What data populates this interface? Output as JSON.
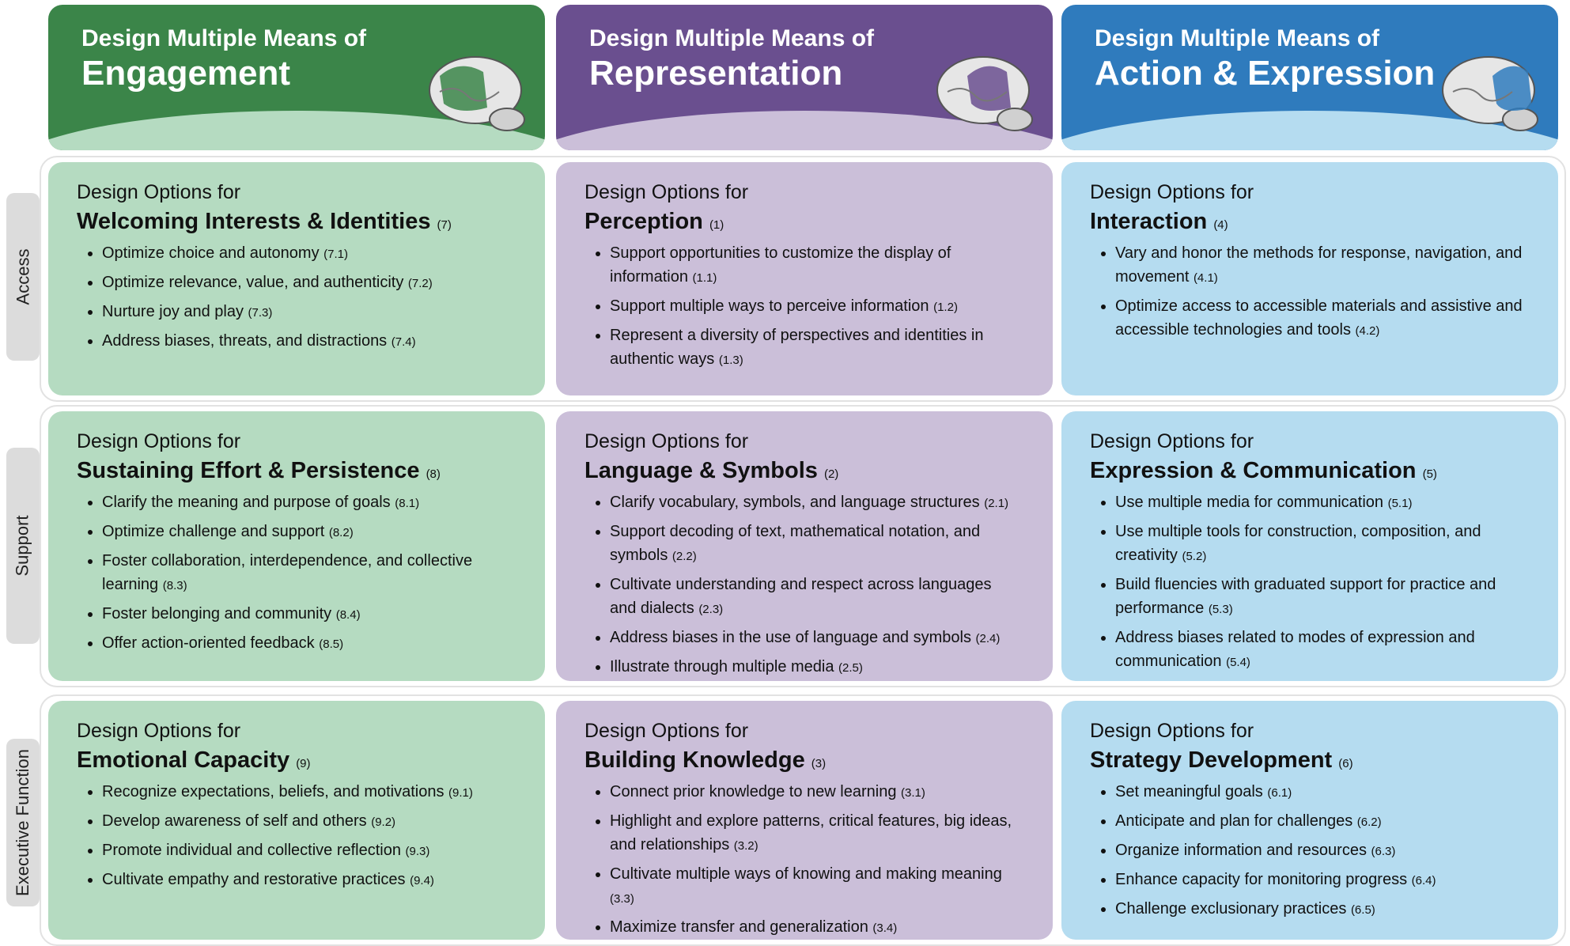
{
  "columns": [
    {
      "pre": "Design Multiple Means of",
      "title": "Engagement"
    },
    {
      "pre": "Design Multiple Means of",
      "title": "Representation"
    },
    {
      "pre": "Design Multiple Means of",
      "title": "Action & Expression"
    }
  ],
  "rows": [
    {
      "label": "Access",
      "cells": [
        {
          "pre": "Design Options for",
          "title": "Welcoming Interests & Identities",
          "num": "(7)",
          "items": [
            {
              "text": "Optimize choice and autonomy",
              "ref": "(7.1)"
            },
            {
              "text": "Optimize relevance, value, and authenticity",
              "ref": "(7.2)"
            },
            {
              "text": "Nurture joy and play",
              "ref": "(7.3)"
            },
            {
              "text": "Address biases, threats, and distractions",
              "ref": "(7.4)"
            }
          ]
        },
        {
          "pre": "Design Options for",
          "title": "Perception",
          "num": "(1)",
          "items": [
            {
              "text": "Support opportunities to customize the display of information",
              "ref": "(1.1)"
            },
            {
              "text": "Support multiple ways to perceive information",
              "ref": "(1.2)"
            },
            {
              "text": "Represent a diversity of perspectives and identities in authentic ways",
              "ref": "(1.3)"
            }
          ]
        },
        {
          "pre": "Design Options for",
          "title": "Interaction",
          "num": "(4)",
          "items": [
            {
              "text": "Vary and honor the methods for response, navigation, and movement",
              "ref": "(4.1)"
            },
            {
              "text": "Optimize access to accessible materials and assistive and accessible technologies and tools",
              "ref": "(4.2)"
            }
          ]
        }
      ]
    },
    {
      "label": "Support",
      "cells": [
        {
          "pre": "Design Options for",
          "title": "Sustaining Effort & Persistence",
          "num": "(8)",
          "items": [
            {
              "text": "Clarify the meaning and purpose of goals",
              "ref": "(8.1)"
            },
            {
              "text": "Optimize challenge and support",
              "ref": "(8.2)"
            },
            {
              "text": "Foster collaboration, interdependence, and collective learning",
              "ref": "(8.3)"
            },
            {
              "text": "Foster belonging and community",
              "ref": "(8.4)"
            },
            {
              "text": "Offer action-oriented feedback",
              "ref": "(8.5)"
            }
          ]
        },
        {
          "pre": "Design Options for",
          "title": "Language & Symbols",
          "num": "(2)",
          "items": [
            {
              "text": "Clarify vocabulary, symbols, and language structures",
              "ref": "(2.1)"
            },
            {
              "text": "Support decoding of text, mathematical notation, and symbols",
              "ref": "(2.2)"
            },
            {
              "text": "Cultivate understanding and respect across languages and dialects",
              "ref": "(2.3)"
            },
            {
              "text": "Address biases in the use of language and symbols",
              "ref": "(2.4)"
            },
            {
              "text": "Illustrate through multiple media",
              "ref": "(2.5)"
            }
          ]
        },
        {
          "pre": "Design Options for",
          "title": "Expression & Communication",
          "num": "(5)",
          "items": [
            {
              "text": "Use multiple media for communication",
              "ref": "(5.1)"
            },
            {
              "text": "Use multiple tools for construction, composition, and creativity",
              "ref": "(5.2)"
            },
            {
              "text": "Build fluencies with graduated support for practice and performance",
              "ref": "(5.3)"
            },
            {
              "text": "Address biases related to modes of expression and communication",
              "ref": "(5.4)"
            }
          ]
        }
      ]
    },
    {
      "label": "Executive Function",
      "cells": [
        {
          "pre": "Design Options for",
          "title": "Emotional Capacity",
          "num": "(9)",
          "items": [
            {
              "text": "Recognize expectations, beliefs, and motivations",
              "ref": "(9.1)"
            },
            {
              "text": "Develop awareness of self and others",
              "ref": "(9.2)"
            },
            {
              "text": "Promote individual and collective reflection",
              "ref": "(9.3)"
            },
            {
              "text": "Cultivate empathy and restorative practices",
              "ref": "(9.4)"
            }
          ]
        },
        {
          "pre": "Design Options for",
          "title": "Building Knowledge",
          "num": "(3)",
          "items": [
            {
              "text": "Connect prior knowledge to new learning",
              "ref": "(3.1)"
            },
            {
              "text": "Highlight and explore patterns, critical features, big ideas, and relationships",
              "ref": "(3.2)"
            },
            {
              "text": "Cultivate multiple ways of knowing and making meaning",
              "ref": "(3.3)"
            },
            {
              "text": "Maximize transfer and generalization",
              "ref": "(3.4)"
            }
          ]
        },
        {
          "pre": "Design Options for",
          "title": "Strategy Development",
          "num": "(6)",
          "items": [
            {
              "text": "Set meaningful goals",
              "ref": "(6.1)"
            },
            {
              "text": "Anticipate and plan for challenges",
              "ref": "(6.2)"
            },
            {
              "text": "Organize information and resources",
              "ref": "(6.3)"
            },
            {
              "text": "Enhance capacity for monitoring progress",
              "ref": "(6.4)"
            },
            {
              "text": "Challenge exclusionary practices",
              "ref": "(6.5)"
            }
          ]
        }
      ]
    }
  ]
}
